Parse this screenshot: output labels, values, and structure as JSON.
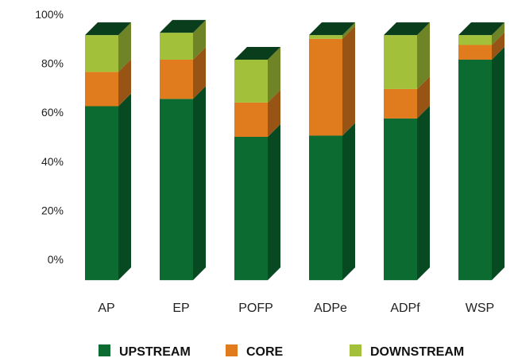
{
  "chart_data": {
    "type": "bar",
    "stacked": true,
    "categories": [
      "AP",
      "EP",
      "POFP",
      "ADPe",
      "ADPf",
      "WSP"
    ],
    "series": [
      {
        "name": "UPSTREAM",
        "color": "#0b6b30",
        "values": [
          71,
          74,
          58.5,
          59,
          66,
          90
        ]
      },
      {
        "name": "CORE",
        "color": "#e07b1e",
        "values": [
          14,
          16,
          14,
          39.5,
          12,
          6
        ]
      },
      {
        "name": "DOWNSTREAM",
        "color": "#a3c03a",
        "values": [
          15,
          11,
          17.5,
          1.5,
          22,
          4
        ]
      }
    ],
    "yticks": [
      "0%",
      "20%",
      "40%",
      "60%",
      "80%",
      "100%"
    ],
    "ytick_values": [
      0,
      20,
      40,
      60,
      80,
      100
    ],
    "ylim": [
      0,
      100
    ],
    "baseline": -8.5,
    "grid": false,
    "legend_position": "bottom",
    "three_d": true
  }
}
